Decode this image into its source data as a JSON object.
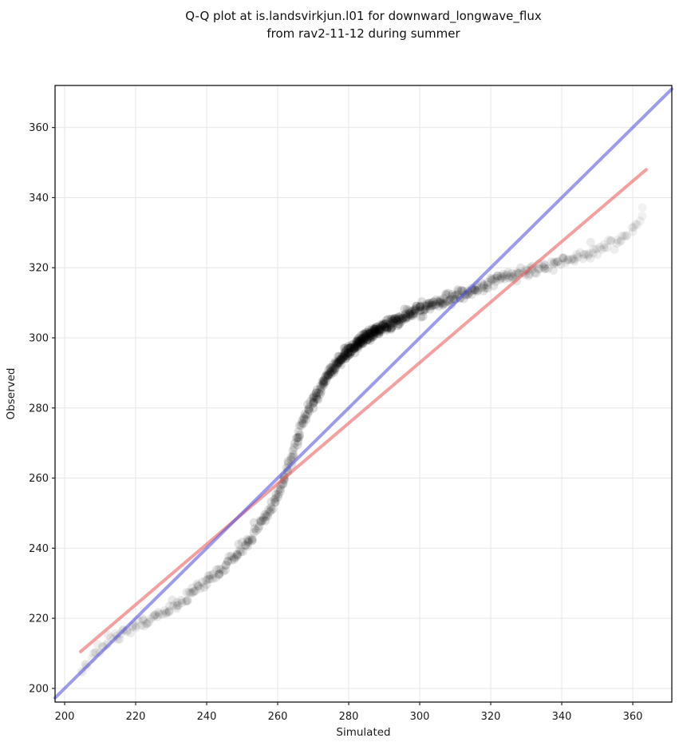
{
  "title": {
    "line1": "Q-Q plot at is.landsvirkjun.l01 for downward_longwave_flux",
    "line2": "from rav2-11-12 during summer"
  },
  "chart_data": {
    "type": "scatter",
    "subtype": "qq-plot",
    "xlabel": "Simulated",
    "ylabel": "Observed",
    "xlim": [
      197.3,
      371.0
    ],
    "ylim": [
      196.1,
      372.0
    ],
    "x_ticks": [
      200,
      220,
      240,
      260,
      280,
      300,
      320,
      340,
      360
    ],
    "y_ticks": [
      200,
      220,
      240,
      260,
      280,
      300,
      320,
      340,
      360
    ],
    "grid": true,
    "grid_color": "#e6e6e6",
    "background_color": "#ffffff",
    "identity_line": {
      "color": "#4a49dd",
      "opacity": 0.55,
      "width": 4,
      "x1": 197.3,
      "y1": 197.3,
      "x2": 371.0,
      "y2": 371.0
    },
    "fit_line": {
      "color": "#ed5252",
      "opacity": 0.55,
      "width": 4,
      "x1": 204.5,
      "y1": 210.5,
      "x2": 363.8,
      "y2": 348.0
    },
    "marker": {
      "color": "#000000",
      "radius": 5.5,
      "base_opacity": 0.05,
      "peak_opacity_boost": 0.1
    },
    "n_points": 700,
    "qq_curve_anchors": [
      [
        204.5,
        205.5
      ],
      [
        207,
        207.5
      ],
      [
        209.5,
        210.5
      ],
      [
        212,
        213
      ],
      [
        214.5,
        214.8
      ],
      [
        217.5,
        216.2
      ],
      [
        220.5,
        217.8
      ],
      [
        223.5,
        219.3
      ],
      [
        226.5,
        220.8
      ],
      [
        229.5,
        222.5
      ],
      [
        232.5,
        224.8
      ],
      [
        235.5,
        227
      ],
      [
        238.5,
        229.2
      ],
      [
        241.5,
        231.6
      ],
      [
        244.5,
        234.2
      ],
      [
        247.5,
        237.2
      ],
      [
        250,
        240
      ],
      [
        252.5,
        243.2
      ],
      [
        255,
        246.5
      ],
      [
        257,
        249.5
      ],
      [
        259,
        253
      ],
      [
        261,
        257.5
      ],
      [
        263,
        263
      ],
      [
        265,
        269.5
      ],
      [
        267,
        275
      ],
      [
        269,
        280
      ],
      [
        271,
        284
      ],
      [
        273,
        287.5
      ],
      [
        275,
        290.5
      ],
      [
        277,
        293
      ],
      [
        279,
        295.2
      ],
      [
        281,
        297
      ],
      [
        283.5,
        299
      ],
      [
        286,
        300.8
      ],
      [
        289,
        302.6
      ],
      [
        292,
        304.2
      ],
      [
        295,
        305.8
      ],
      [
        298,
        307.2
      ],
      [
        301,
        308.5
      ],
      [
        304,
        309.6
      ],
      [
        307,
        310.6
      ],
      [
        310,
        311.6
      ],
      [
        313,
        312.6
      ],
      [
        316,
        314
      ],
      [
        319,
        315.3
      ],
      [
        322,
        316.6
      ],
      [
        325,
        317.5
      ],
      [
        328,
        318.3
      ],
      [
        331,
        319
      ],
      [
        334,
        319.8
      ],
      [
        337,
        320.8
      ],
      [
        340,
        321.8
      ],
      [
        343,
        322.8
      ],
      [
        346,
        323.6
      ],
      [
        349,
        324.6
      ],
      [
        352,
        325.8
      ],
      [
        355,
        327.3
      ],
      [
        357.5,
        329
      ],
      [
        359.5,
        330.8
      ],
      [
        361,
        332.8
      ],
      [
        362.3,
        335
      ],
      [
        363.3,
        337.3
      ]
    ]
  }
}
